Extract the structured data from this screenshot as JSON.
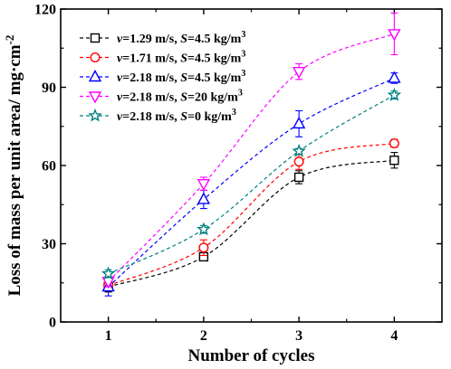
{
  "chart_data": {
    "type": "scatter",
    "xlabel": "Number of cycles",
    "ylabel_main": "Loss of mass per unit area/ mg·cm",
    "ylabel_sup": "-2",
    "x": [
      1,
      2,
      3,
      4
    ],
    "xlim": [
      0.5,
      4.5
    ],
    "ylim": [
      0,
      120
    ],
    "xticks": [
      "1",
      "2",
      "3",
      "4"
    ],
    "yticks": [
      "0",
      "30",
      "60",
      "90",
      "120"
    ],
    "grid": false,
    "legend_position": "top-left",
    "series": [
      {
        "name": "v=1.29 m/s, S=4.5 kg/m3",
        "legend_parts": [
          "v",
          "=1.29 m/s, ",
          "S",
          "=4.5 kg/m",
          "3"
        ],
        "marker": "square",
        "color": "#000000",
        "values": [
          13.5,
          25.0,
          55.5,
          62.0
        ],
        "errors": [
          2.0,
          1.5,
          2.5,
          3.0
        ]
      },
      {
        "name": "v=1.71 m/s, S=4.5 kg/m3",
        "legend_parts": [
          "v",
          "=1.71 m/s, ",
          "S",
          "=4.5 kg/m",
          "3"
        ],
        "marker": "circle",
        "color": "#ff0000",
        "values": [
          14.0,
          28.5,
          61.5,
          68.5
        ],
        "errors": [
          2.0,
          3.0,
          3.0,
          1.5
        ]
      },
      {
        "name": "v=2.18 m/s, S=4.5 kg/m3",
        "legend_parts": [
          "v",
          "=2.18 m/s, ",
          "S",
          "=4.5 kg/m",
          "3"
        ],
        "marker": "triangle-up",
        "color": "#0000ff",
        "values": [
          13.5,
          47.0,
          76.0,
          93.5
        ],
        "errors": [
          3.5,
          3.5,
          5.0,
          2.0
        ]
      },
      {
        "name": "v=2.18 m/s, S=20 kg/m3",
        "legend_parts": [
          "v",
          "=2.18 m/s, ",
          "S",
          "=20 kg/m",
          "3"
        ],
        "marker": "triangle-down",
        "color": "#ff00ff",
        "values": [
          15.5,
          53.0,
          96.0,
          110.5
        ],
        "errors": [
          2.0,
          2.5,
          3.0,
          8.0
        ]
      },
      {
        "name": "v=2.18 m/s, S=0 kg/m3",
        "legend_parts": [
          "v",
          "=2.18 m/s, ",
          "S",
          "=0 kg/m",
          "3"
        ],
        "marker": "star",
        "color": "#008080",
        "values": [
          18.5,
          35.5,
          65.5,
          87.0
        ],
        "errors": [
          1.5,
          1.5,
          1.0,
          1.5
        ]
      }
    ]
  }
}
